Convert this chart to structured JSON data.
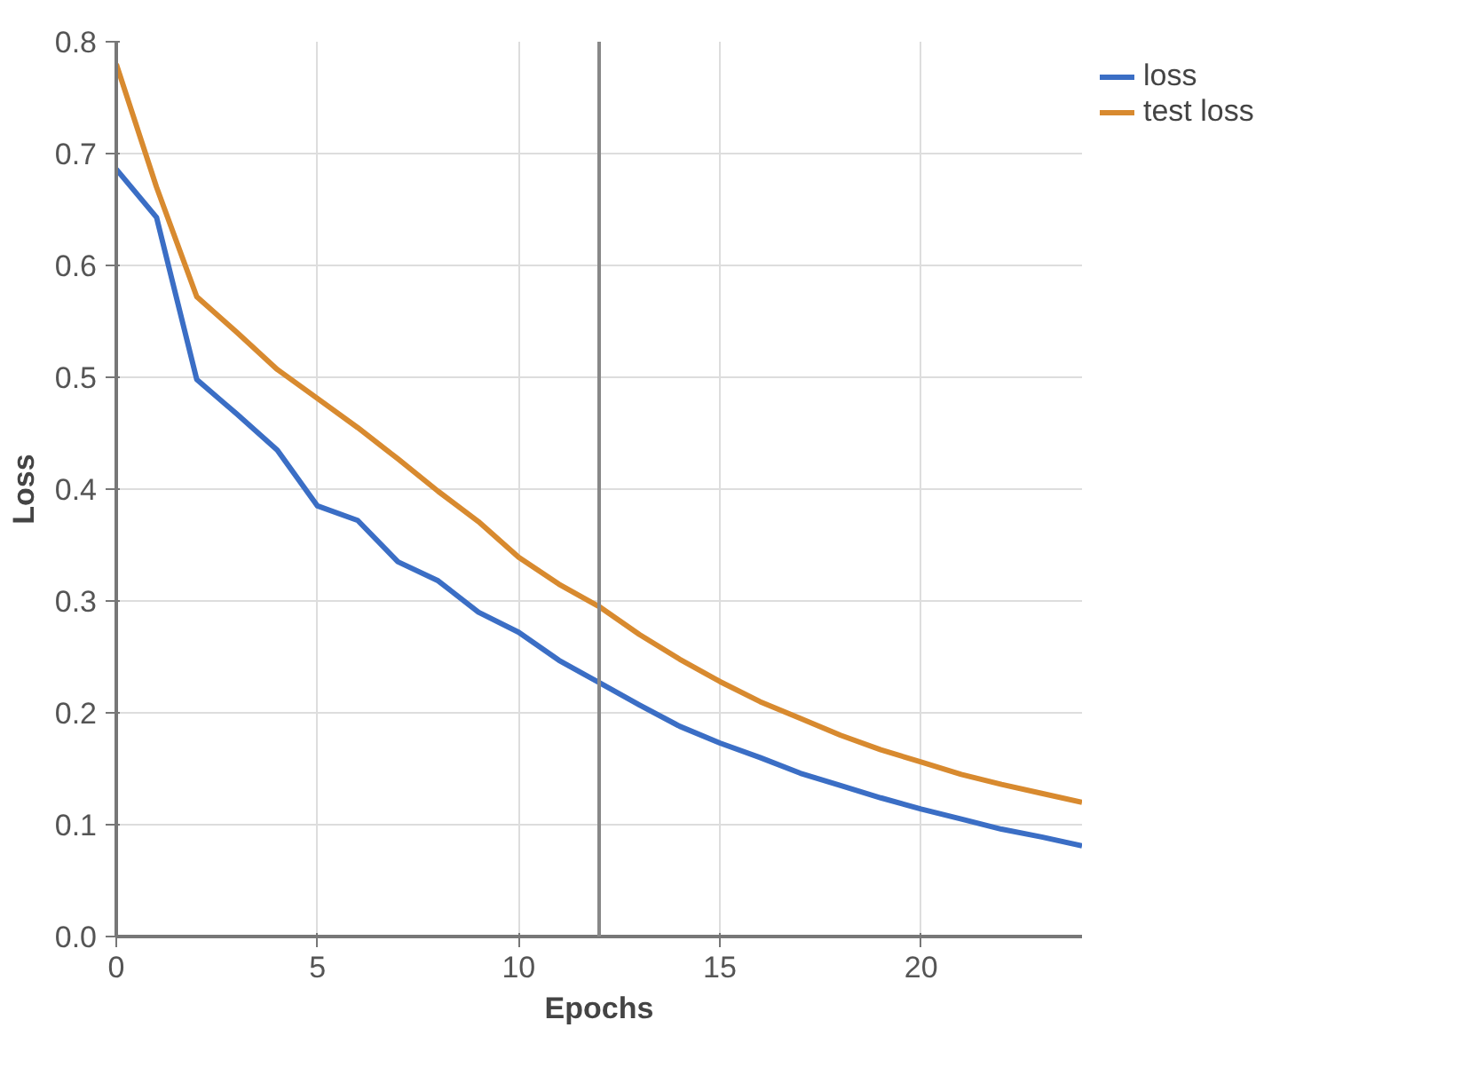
{
  "chart_data": {
    "type": "line",
    "xlabel": "Epochs",
    "ylabel": "Loss",
    "x": [
      0,
      1,
      2,
      3,
      4,
      5,
      6,
      7,
      8,
      9,
      10,
      11,
      12,
      13,
      14,
      15,
      16,
      17,
      18,
      19,
      20,
      21,
      22,
      23,
      24
    ],
    "series": [
      {
        "name": "loss",
        "color": "#3b6ec5",
        "values": [
          0.686,
          0.643,
          0.498,
          0.467,
          0.435,
          0.385,
          0.372,
          0.335,
          0.318,
          0.29,
          0.272,
          0.247,
          0.227,
          0.207,
          0.188,
          0.173,
          0.16,
          0.146,
          0.135,
          0.124,
          0.114,
          0.105,
          0.096,
          0.089,
          0.081
        ]
      },
      {
        "name": "test loss",
        "color": "#d88a2f",
        "values": [
          0.78,
          0.67,
          0.572,
          0.54,
          0.507,
          0.481,
          0.455,
          0.427,
          0.398,
          0.371,
          0.339,
          0.315,
          0.295,
          0.27,
          0.248,
          0.228,
          0.21,
          0.195,
          0.18,
          0.167,
          0.156,
          0.145,
          0.136,
          0.128,
          0.12
        ]
      }
    ],
    "xlim": [
      0,
      24
    ],
    "xticks": [
      0,
      5,
      10,
      15,
      20
    ],
    "ylim": [
      0,
      0.8
    ],
    "yticks": [
      {
        "value": 0,
        "label": "0.0"
      },
      0.1,
      0.2,
      0.3,
      0.4,
      0.5,
      0.6,
      0.7,
      0.8
    ],
    "ref_lines": [
      {
        "axis": "x",
        "value": 12,
        "color": "#888888"
      }
    ],
    "grid": true,
    "legend": "top right",
    "marker": "none",
    "line_style": "solid"
  }
}
